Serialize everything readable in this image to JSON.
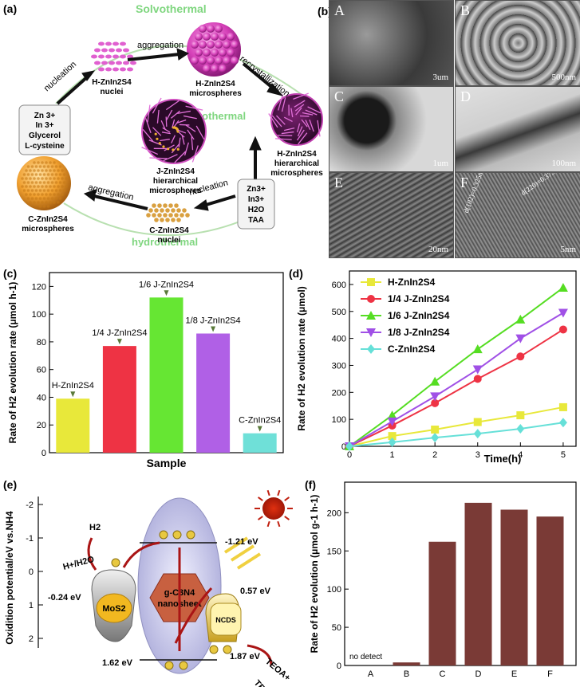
{
  "panels": {
    "a": "(a)",
    "b": "(b)",
    "c": "(c)",
    "d": "(d)",
    "e": "(e)",
    "f": "(f)"
  },
  "scheme_a": {
    "solvothermal": "Solvothermal",
    "hydrothermal_top": "hydrothermal",
    "hydrothermal_bottom": "hydrothermal",
    "nucleation_1": "nucleation",
    "aggregation_1": "aggregation",
    "recrystallization": "recrystallization",
    "aggregation_2": "aggregation",
    "nucleation_2": "nucleation",
    "h_nuclei": [
      "H-ZnIn2S4",
      "nuclei"
    ],
    "h_micro": [
      "H-ZnIn2S4",
      "microspheres"
    ],
    "h_hier": [
      "H-ZnIn2S4",
      "hierarchical",
      "microspheres"
    ],
    "j_hier": [
      "J-ZnIn2S4",
      "hierarchical",
      "microspheres"
    ],
    "c_nuclei": [
      "C-ZnIn2S4",
      "nuclei"
    ],
    "c_micro": [
      "C-ZnIn2S4",
      "microspheres"
    ],
    "box1": [
      "Zn 3+",
      "In 3+",
      "Glycerol",
      "L-cysteine"
    ],
    "box2": [
      "Zn3+",
      "In3+",
      "H2O",
      "TAA"
    ]
  },
  "tem_b": {
    "cells": [
      {
        "tag": "A",
        "scale": "3um"
      },
      {
        "tag": "B",
        "scale": "500nm"
      },
      {
        "tag": "C",
        "scale": "1um"
      },
      {
        "tag": "D",
        "scale": "100nm"
      },
      {
        "tag": "E",
        "scale": "20nm"
      },
      {
        "tag": "F",
        "scale": "5nm"
      }
    ],
    "d102": "d(102)=0.325nm",
    "d220": "d(220)=0.375nm"
  },
  "diagram_e": {
    "ylabel": "Oxidition potential/eV vs.NH4",
    "ticks": [
      "-2",
      "-1",
      "0",
      "1",
      "2"
    ],
    "labels": {
      "h2": "H2",
      "hplus": "H+/H2O",
      "mos2_level": "-0.24 eV",
      "cb_level": "-1.21 eV",
      "ncds_cb": "0.57 eV",
      "vb_level": "1.62 eV",
      "ncds_vb": "1.87 eV",
      "teoa_plus": "TEOA+",
      "teoa": "TEOA",
      "mos2": "MoS2",
      "g_c3n4": "g-C3N4",
      "nanosheet": "nanosheet",
      "ncds": "NCDS"
    }
  },
  "chart_data": [
    {
      "id": "c",
      "type": "bar",
      "categories": [
        "H-ZnIn2S4",
        "1/4 J-ZnIn2S4",
        "1/6 J-ZnIn2S4",
        "1/8 J-ZnIn2S4",
        "C-ZnIn2S4"
      ],
      "values": [
        39,
        77,
        112,
        86,
        14
      ],
      "colors": [
        "#e8e83a",
        "#ee3344",
        "#66e633",
        "#b060e6",
        "#6fe0d8"
      ],
      "xlabel": "Sample",
      "ylabel": "Rate of H2 evolution rate (μmol h-1)",
      "ylim": [
        0,
        130
      ],
      "yticks": [
        0,
        20,
        40,
        60,
        80,
        100,
        120
      ]
    },
    {
      "id": "d",
      "type": "line",
      "x": [
        0,
        1,
        2,
        3,
        4,
        5
      ],
      "series": [
        {
          "name": "H-ZnIn2S4",
          "values": [
            0,
            38,
            62,
            90,
            115,
            145
          ],
          "color": "#e8e83a",
          "marker": "square"
        },
        {
          "name": "1/4 J-ZnIn2S4",
          "values": [
            0,
            77,
            160,
            250,
            333,
            433
          ],
          "color": "#ee3344",
          "marker": "circle"
        },
        {
          "name": "1/6 J-ZnIn2S4",
          "values": [
            0,
            115,
            240,
            360,
            470,
            588
          ],
          "color": "#55dd22",
          "marker": "triangle-up"
        },
        {
          "name": "1/8 J-ZnIn2S4",
          "values": [
            0,
            92,
            185,
            285,
            400,
            495
          ],
          "color": "#a050e6",
          "marker": "triangle-down"
        },
        {
          "name": "C-ZnIn2S4",
          "values": [
            0,
            15,
            32,
            47,
            65,
            88
          ],
          "color": "#66e0d8",
          "marker": "diamond"
        }
      ],
      "xlabel": "Time(h)",
      "ylabel": "Rate of H2 evolution rate (μmol)",
      "xlim": [
        0,
        5.3
      ],
      "ylim": [
        0,
        650
      ],
      "xticks": [
        0,
        1,
        2,
        3,
        4,
        5
      ],
      "yticks": [
        0,
        100,
        200,
        300,
        400,
        500,
        600
      ],
      "legend": "top-left"
    },
    {
      "id": "f",
      "type": "bar",
      "categories": [
        "A",
        "B",
        "C",
        "D",
        "E",
        "F"
      ],
      "values": [
        0,
        4,
        162,
        213,
        204,
        195
      ],
      "color": "#7a3a36",
      "annotation": "no detect",
      "ylabel": "Rate of H2 evolution (μmol g-1 h-1)",
      "ylim": [
        0,
        240
      ],
      "yticks": [
        0,
        50,
        100,
        150,
        200
      ]
    }
  ]
}
